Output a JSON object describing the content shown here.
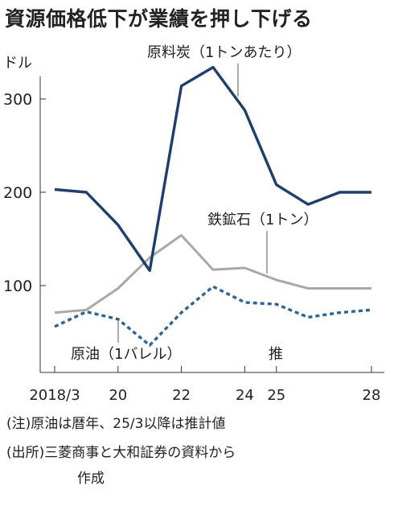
{
  "title": "資源価格低下が業績を押し下げる",
  "notes": {
    "note1": "(注)原油は暦年、25/3以降は推計値",
    "note2_line1": "(出所)三菱商事と大和証券の資料から",
    "note2_line2": "作成"
  },
  "chart_data": {
    "type": "line",
    "unit_label": "ドル",
    "ylim": [
      0,
      350
    ],
    "y_ticks": [
      100,
      200,
      300
    ],
    "x_ticks": [
      {
        "x": 2018,
        "label": "2018/3"
      },
      {
        "x": 2020,
        "label": "20"
      },
      {
        "x": 2022,
        "label": "22"
      },
      {
        "x": 2024,
        "label": "24"
      },
      {
        "x": 2025,
        "label": "25"
      },
      {
        "x": 2028,
        "label": "28"
      }
    ],
    "estimate_label": "推",
    "grid": false,
    "colors": {
      "coking_coal": "#1e3f6e",
      "iron_ore": "#a9a9a9",
      "crude_oil": "#2d6496"
    },
    "series": [
      {
        "key": "coking_coal",
        "name": "原料炭（1トンあたり）",
        "style": "solid",
        "x": [
          2018,
          2019,
          2020,
          2021,
          2022,
          2023,
          2024,
          2025,
          2026,
          2027,
          2028
        ],
        "values": [
          203,
          200,
          165,
          116,
          314,
          334,
          288,
          208,
          187,
          200,
          200
        ]
      },
      {
        "key": "iron_ore",
        "name": "鉄鉱石（1トン）",
        "style": "solid",
        "x": [
          2018,
          2019,
          2020,
          2021,
          2022,
          2023,
          2024,
          2025,
          2026,
          2027,
          2028
        ],
        "values": [
          71,
          74,
          97,
          130,
          154,
          117,
          119,
          106,
          97,
          97,
          97
        ]
      },
      {
        "key": "crude_oil",
        "name": "原油（1バレル）",
        "style": "dashed",
        "x": [
          2018,
          2019,
          2020,
          2021,
          2022,
          2023,
          2024,
          2025,
          2026,
          2027,
          2028
        ],
        "values": [
          56,
          72,
          64,
          36,
          71,
          99,
          82,
          80,
          66,
          71,
          74
        ]
      }
    ]
  }
}
